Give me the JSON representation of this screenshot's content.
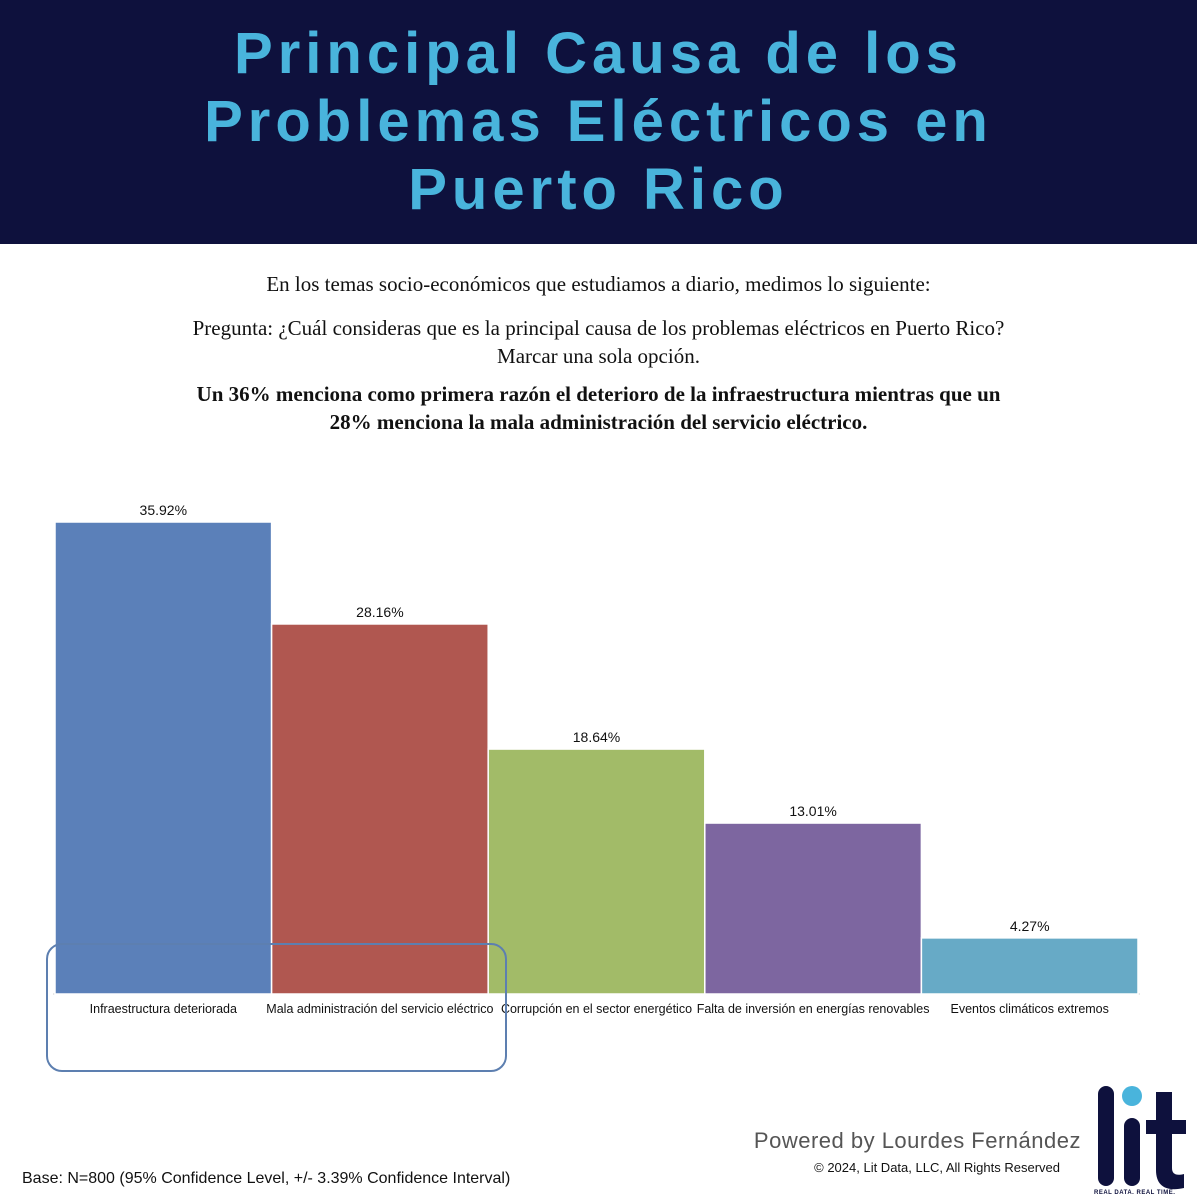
{
  "header": {
    "title": "Principal Causa de los\nProblemas Eléctricos en\nPuerto Rico"
  },
  "intro": {
    "text": "En los temas socio-económicos que estudiamos a diario, medimos lo siguiente:",
    "question": "Pregunta: ¿Cuál consideras que es la principal causa de los problemas eléctricos en Puerto Rico?\nMarcar una sola opción.",
    "finding": "Un 36% menciona como primera razón el deterioro de la infraestructura mientras que un\n28% menciona la mala administración del servicio eléctrico."
  },
  "chart_data": {
    "type": "bar",
    "categories": [
      "Infraestructura deteriorada",
      "Mala administración del servicio eléctrico",
      "Corrupción en el sector energético",
      "Falta de inversión en energías renovables",
      "Eventos climáticos extremos"
    ],
    "values": [
      35.92,
      28.16,
      18.64,
      13.01,
      4.27
    ],
    "value_labels": [
      "35.92%",
      "28.16%",
      "18.64%",
      "13.01%",
      "4.27%"
    ],
    "colors": [
      "#5b80b9",
      "#b05750",
      "#a2bb68",
      "#7d66a0",
      "#67aac6"
    ],
    "title": "",
    "xlabel": "",
    "ylabel": "",
    "ylim": [
      0,
      35.92
    ],
    "grid": false,
    "legend": "none",
    "highlighted_categories": [
      "Infraestructura deteriorada",
      "Mala administración del servicio eléctrico"
    ]
  },
  "footer": {
    "powered_by": "Powered by Lourdes Fernández",
    "copyright": "©  2024, Lit Data, LLC, All Rights Reserved",
    "base_note": "Base: N=800 (95% Confidence Level, +/- 3.39% Confidence Interval)",
    "logo_text": "lit",
    "logo_tagline": "REAL DATA. REAL TIME."
  }
}
